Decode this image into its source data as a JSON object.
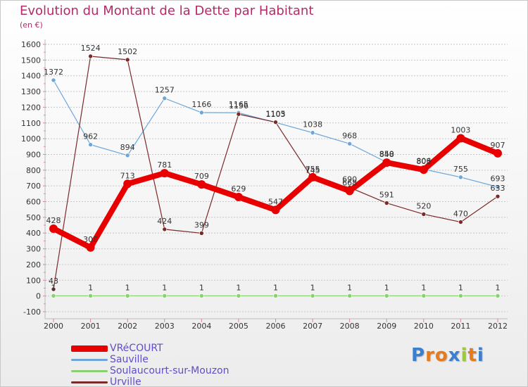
{
  "title": "Evolution du Montant de la Dette par Habitant",
  "subtitle": "(en €)",
  "logo_text": "Proxiti",
  "colors": {
    "VRéCOURT": "#e80000",
    "Sauville": "#6ea6d8",
    "Soulaucourt-sur-Mouzon": "#8ad070",
    "Urville": "#7a2a2a",
    "grid": "#c8c8c8",
    "axis_text": "#333333"
  },
  "chart_data": {
    "type": "line",
    "title": "Evolution du Montant de la Dette par Habitant",
    "subtitle": "(en €)",
    "xlabel": "",
    "ylabel": "",
    "ylim": [
      -100,
      1600
    ],
    "yticks": [
      -100,
      0,
      100,
      200,
      300,
      400,
      500,
      600,
      700,
      800,
      900,
      1000,
      1100,
      1200,
      1300,
      1400,
      1500,
      1600
    ],
    "grid": true,
    "legend_position": "bottom-left",
    "x": [
      "2000",
      "2001",
      "2002",
      "2003",
      "2004",
      "2005",
      "2006",
      "2007",
      "2008",
      "2009",
      "2010",
      "2011",
      "2012"
    ],
    "series": [
      {
        "name": "Sauville",
        "values": [
          1372,
          962,
          894,
          1257,
          1166,
          1165,
          1103,
          1038,
          968,
          850,
          806,
          755,
          693
        ]
      },
      {
        "name": "Soulaucourt-sur-Mouzon",
        "values": [
          1,
          1,
          1,
          1,
          1,
          1,
          1,
          1,
          1,
          1,
          1,
          1,
          1
        ]
      },
      {
        "name": "Urville",
        "values": [
          43,
          1524,
          1502,
          424,
          399,
          1156,
          1105,
          745,
          690,
          591,
          520,
          470,
          633
        ]
      },
      {
        "name": "VRéCOURT",
        "values": [
          428,
          308,
          713,
          781,
          709,
          629,
          547,
          755,
          668,
          848,
          803,
          1003,
          907
        ]
      }
    ]
  },
  "legend": [
    {
      "label": "VRéCOURT"
    },
    {
      "label": "Sauville"
    },
    {
      "label": "Soulaucourt-sur-Mouzon"
    },
    {
      "label": "Urville"
    }
  ]
}
